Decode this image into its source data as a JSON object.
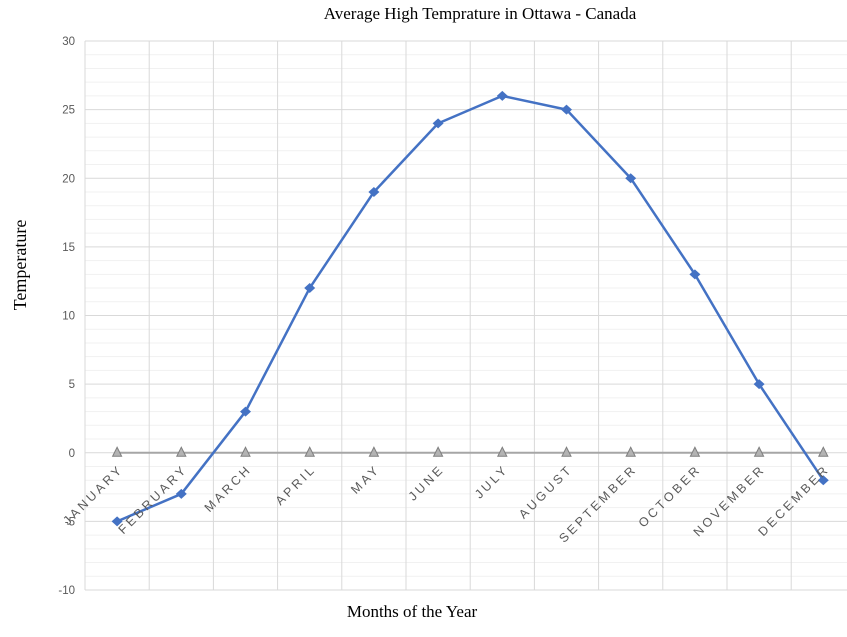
{
  "chart_data": {
    "type": "line",
    "title": "Average High Temprature in Ottawa - Canada",
    "xlabel": "Months of the Year",
    "ylabel": "Temperature",
    "categories": [
      "JANUARY",
      "FEBRUARY",
      "MARCH",
      "APRIL",
      "MAY",
      "JUNE",
      "JULY",
      "AUGUST",
      "SEPTEMBER",
      "OCTOBER",
      "NOVEMBER",
      "DECEMBER"
    ],
    "series": [
      {
        "name": "average-high-temperature",
        "values": [
          -5,
          -3,
          3,
          12,
          19,
          24,
          26,
          25,
          20,
          13,
          5,
          -2
        ],
        "color": "#4472C4",
        "marker": "diamond",
        "line_width": 2.5
      },
      {
        "name": "zero-baseline",
        "values": [
          0,
          0,
          0,
          0,
          0,
          0,
          0,
          0,
          0,
          0,
          0,
          0
        ],
        "color": "#A6A6A6",
        "marker": "triangle",
        "marker_fill": "#B3B3B3",
        "marker_stroke": "#7F7F7F",
        "line_width": 2
      }
    ],
    "ylim": [
      -10,
      30
    ],
    "y_major_ticks": [
      30,
      25,
      20,
      15,
      10,
      5,
      0,
      -5,
      -10
    ],
    "y_minor_step": 1,
    "y_major_step": 5,
    "grid": {
      "major_color": "#D9D9D9",
      "minor_color": "#F1F1F1",
      "vertical": true
    },
    "tick_label_color": "#595959",
    "legend_position": "none"
  }
}
